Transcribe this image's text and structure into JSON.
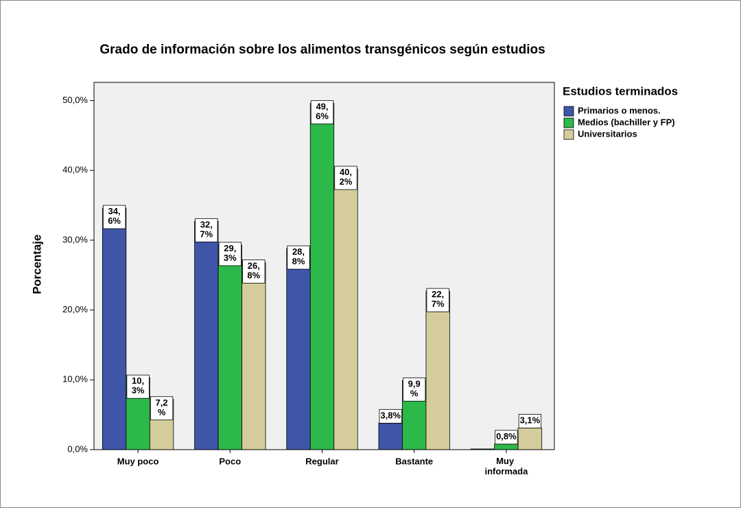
{
  "chart_data": {
    "type": "bar",
    "title": "Grado de información sobre los alimentos transgénicos según estudios",
    "y_label": "Porcentaje",
    "legend_title": "Estudios terminados",
    "categories": [
      "Muy poco",
      "Poco",
      "Regular",
      "Bastante",
      "Muy informada"
    ],
    "series": [
      {
        "name": "Primarios o menos.",
        "color": "#3f55a8",
        "values": [
          34.6,
          32.7,
          28.8,
          3.8,
          0.1
        ],
        "value_labels": [
          "34,6%",
          "32,7%",
          "28,8%",
          "3,8%",
          null
        ]
      },
      {
        "name": "Medios (bachiller y FP)",
        "color": "#2db84a",
        "values": [
          10.3,
          29.3,
          49.6,
          9.9,
          0.8
        ],
        "value_labels": [
          "10,3%",
          "29,3%",
          "49,6%",
          "9,9%",
          "0,8%"
        ]
      },
      {
        "name": "Universitarios",
        "color": "#d4cc9a",
        "values": [
          7.2,
          26.8,
          40.2,
          22.7,
          3.1
        ],
        "value_labels": [
          "7,2%",
          "26,8%",
          "40,2%",
          "22,7%",
          "3,1%"
        ]
      }
    ],
    "ylim": [
      0,
      52.6
    ],
    "yticks": [
      {
        "value": 0,
        "label": "0,0%"
      },
      {
        "value": 10,
        "label": "10,0%"
      },
      {
        "value": 20,
        "label": "20,0%"
      },
      {
        "value": 30,
        "label": "30,0%"
      },
      {
        "value": 40,
        "label": "40,0%"
      },
      {
        "value": 50,
        "label": "50,0%"
      }
    ],
    "legend": "right"
  }
}
